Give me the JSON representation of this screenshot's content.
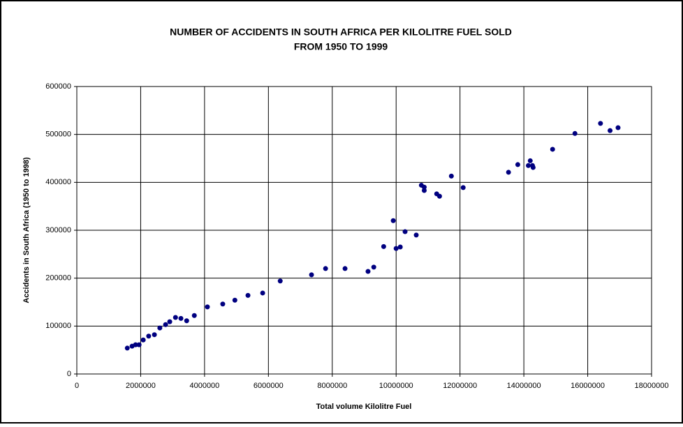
{
  "chart_data": {
    "type": "scatter",
    "title": [
      "NUMBER OF ACCIDENTS  IN SOUTH AFRICA PER KILOLITRE FUEL SOLD",
      "FROM 1950 TO 1999"
    ],
    "x_label": "Total volume Kilolitre Fuel",
    "y_label": "Accidents in South Africa (1950 to 1998)",
    "color": "#000080",
    "grid": true,
    "xlim": [
      0,
      18000000
    ],
    "xticks": [
      0,
      2000000,
      4000000,
      6000000,
      8000000,
      10000000,
      12000000,
      14000000,
      16000000,
      18000000
    ],
    "ylim": [
      0,
      600000
    ],
    "yticks": [
      0,
      100000,
      200000,
      300000,
      400000,
      500000,
      600000
    ],
    "x": [
      1580000,
      1730000,
      1840000,
      1950000,
      2080000,
      2250000,
      2430000,
      2600000,
      2780000,
      2910000,
      3090000,
      3260000,
      3440000,
      3680000,
      4090000,
      4570000,
      4950000,
      5360000,
      5820000,
      6370000,
      7350000,
      7790000,
      8400000,
      9120000,
      9300000,
      9610000,
      9910000,
      10000000,
      10130000,
      10280000,
      10630000,
      10790000,
      10880000,
      10880000,
      11270000,
      11360000,
      11730000,
      12100000,
      13520000,
      13810000,
      14140000,
      14200000,
      14270000,
      14290000,
      14900000,
      15600000,
      16400000,
      16700000,
      16950000
    ],
    "values": [
      54000,
      58000,
      61000,
      61000,
      71000,
      79000,
      82000,
      96000,
      103000,
      109000,
      118000,
      116000,
      111000,
      122000,
      140000,
      146000,
      154000,
      164000,
      169000,
      194000,
      207000,
      220000,
      220000,
      214000,
      223000,
      266000,
      320000,
      262000,
      265000,
      297000,
      290000,
      394000,
      390000,
      383000,
      376000,
      371000,
      413000,
      389000,
      421000,
      437000,
      435000,
      445000,
      435000,
      431000,
      469000,
      502000,
      523000,
      508000,
      514000
    ]
  }
}
